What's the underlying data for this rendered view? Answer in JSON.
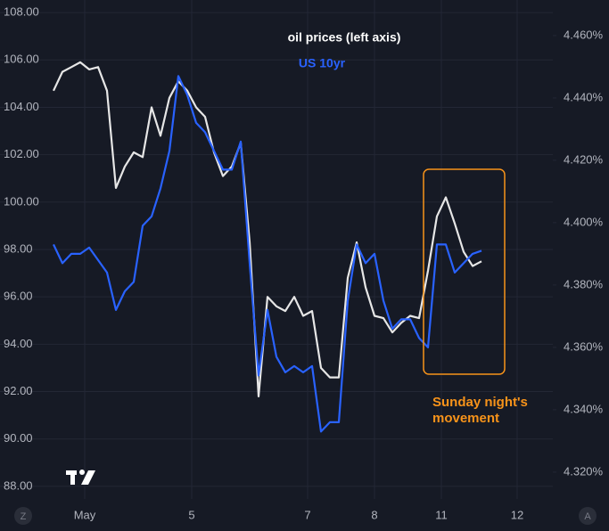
{
  "chart_data": {
    "type": "line",
    "annotations": {
      "oil_label": "oil prices (left axis)",
      "yield_label": "US 10yr",
      "box_note": [
        "Sunday night's",
        "movement"
      ]
    },
    "corner_buttons": [
      "Z",
      "A"
    ],
    "x": [
      0,
      2,
      4,
      6,
      8,
      10,
      12,
      14,
      16,
      18,
      20,
      22,
      24,
      26,
      28,
      30,
      32,
      34,
      36,
      38,
      40,
      42,
      44,
      46,
      48,
      50,
      52,
      54,
      56,
      58,
      60,
      62,
      64,
      66,
      68,
      70,
      72,
      74,
      76,
      78,
      80,
      82,
      84,
      86,
      88,
      90,
      92,
      94,
      96
    ],
    "xlim": [
      0,
      124.6
    ],
    "xticks": [
      {
        "value": 7,
        "label": "May"
      },
      {
        "value": 31,
        "label": "5"
      },
      {
        "value": 57,
        "label": "7"
      },
      {
        "value": 72,
        "label": "8"
      },
      {
        "value": 87,
        "label": "11"
      },
      {
        "value": 104,
        "label": "12"
      }
    ],
    "series": [
      {
        "name": "oil prices",
        "color": "#e6e6e6",
        "axis": "y",
        "values": [
          104.7,
          105.5,
          105.7,
          105.9,
          105.6,
          105.7,
          104.7,
          100.6,
          101.5,
          102.1,
          101.9,
          104.0,
          102.8,
          104.4,
          105.1,
          104.7,
          104.0,
          103.6,
          102.1,
          101.1,
          101.5,
          102.5,
          98.3,
          91.8,
          96.0,
          95.6,
          95.4,
          96.0,
          95.2,
          95.4,
          93.0,
          92.6,
          92.6,
          96.8,
          98.3,
          96.4,
          95.2,
          95.1,
          94.5,
          94.9,
          95.2,
          95.1,
          97.1,
          99.4,
          100.2,
          99.1,
          97.9,
          97.3,
          97.5
        ]
      },
      {
        "name": "US 10yr",
        "color": "#2962ff",
        "axis": "y2",
        "values": [
          4.393,
          4.387,
          4.39,
          4.39,
          4.392,
          4.388,
          4.384,
          4.372,
          4.378,
          4.381,
          4.399,
          4.402,
          4.411,
          4.423,
          4.447,
          4.441,
          4.432,
          4.429,
          4.423,
          4.417,
          4.417,
          4.426,
          4.387,
          4.351,
          4.372,
          4.357,
          4.352,
          4.354,
          4.352,
          4.354,
          4.333,
          4.336,
          4.336,
          4.375,
          4.393,
          4.387,
          4.39,
          4.375,
          4.366,
          4.369,
          4.369,
          4.363,
          4.36,
          4.393,
          4.393,
          4.384,
          4.387,
          4.39,
          4.391
        ]
      }
    ],
    "ylim": [
      87.47,
      108.53
    ],
    "yticks": [
      {
        "value": 88,
        "label": "88.00"
      },
      {
        "value": 90,
        "label": "90.00"
      },
      {
        "value": 92,
        "label": "92.00"
      },
      {
        "value": 94,
        "label": "94.00"
      },
      {
        "value": 96,
        "label": "96.00"
      },
      {
        "value": 98,
        "label": "98.00"
      },
      {
        "value": 100,
        "label": "100.00"
      },
      {
        "value": 102,
        "label": "102.00"
      },
      {
        "value": 104,
        "label": "104.00"
      },
      {
        "value": 106,
        "label": "106.00"
      },
      {
        "value": 108,
        "label": "108.00"
      }
    ],
    "y2lim": [
      4.3114,
      4.4714
    ],
    "y2ticks": [
      {
        "value": 4.32,
        "label": "4.320%"
      },
      {
        "value": 4.34,
        "label": "4.340%"
      },
      {
        "value": 4.36,
        "label": "4.360%"
      },
      {
        "value": 4.38,
        "label": "4.380%"
      },
      {
        "value": 4.4,
        "label": "4.400%"
      },
      {
        "value": 4.42,
        "label": "4.420%"
      },
      {
        "value": 4.44,
        "label": "4.440%"
      },
      {
        "value": 4.46,
        "label": "4.460%"
      }
    ],
    "grid": true
  }
}
